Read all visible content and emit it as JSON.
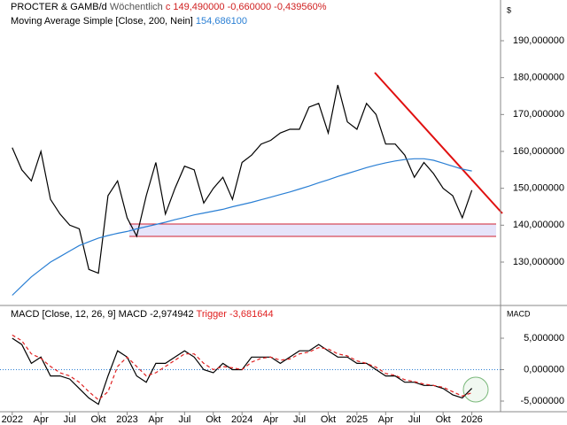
{
  "chart_data": [
    {
      "type": "line",
      "title": "PROCTER & GAMB/d",
      "subtitle": "Wöchentlich",
      "annotation": "c 149,490000 -0,660000 -0,439560%",
      "axis_label": "$",
      "x": [
        "2022-01",
        "2022-02",
        "2022-03",
        "2022-04",
        "2022-05",
        "2022-06",
        "2022-07",
        "2022-08",
        "2022-09",
        "2022-10",
        "2022-11",
        "2022-12",
        "2023-01",
        "2023-02",
        "2023-03",
        "2023-04",
        "2023-05",
        "2023-06",
        "2023-07",
        "2023-08",
        "2023-09",
        "2023-10",
        "2023-11",
        "2023-12",
        "2024-01",
        "2024-02",
        "2024-03",
        "2024-04",
        "2024-05",
        "2024-06",
        "2024-07",
        "2024-08",
        "2024-09",
        "2024-10",
        "2024-11",
        "2024-12",
        "2025-01",
        "2025-02",
        "2025-03",
        "2025-04",
        "2025-05",
        "2025-06",
        "2025-07",
        "2025-08",
        "2025-09",
        "2025-10",
        "2025-11",
        "2025-12",
        "2026-01"
      ],
      "series": [
        {
          "name": "PROCTER & GAMB/d",
          "color": "#000000",
          "values": [
            161,
            155,
            152,
            160,
            147,
            143,
            140,
            139,
            128,
            127,
            148,
            152,
            142,
            137,
            148,
            157,
            143,
            150,
            156,
            155,
            146,
            150,
            153,
            147,
            157,
            159,
            162,
            163,
            165,
            166,
            166,
            172,
            173,
            165,
            178,
            168,
            166,
            173,
            170,
            162,
            162,
            159,
            153,
            157,
            154,
            150,
            148,
            142,
            149.49
          ]
        },
        {
          "name": "Moving Average Simple [Close, 200, Nein]",
          "value_label": "154,686100",
          "color": "#2a7fd4",
          "values": [
            121,
            123.5,
            126,
            128,
            130,
            131.5,
            133,
            134.5,
            135.5,
            136.5,
            137.2,
            137.8,
            138.3,
            139,
            139.6,
            140.2,
            140.8,
            141.5,
            142.1,
            142.8,
            143.3,
            143.8,
            144.3,
            145,
            145.6,
            146.2,
            146.9,
            147.6,
            148.3,
            149,
            149.8,
            150.6,
            151.5,
            152.3,
            153.2,
            154,
            154.8,
            155.6,
            156.3,
            156.9,
            157.4,
            157.8,
            158,
            158,
            157.6,
            156.8,
            156,
            155.2,
            154.69
          ]
        }
      ],
      "ylim": [
        118.72,
        201.04
      ],
      "yticks": [
        {
          "value": 130,
          "label": "130,000000"
        },
        {
          "value": 140,
          "label": "140,000000"
        },
        {
          "value": 150,
          "label": "150,000000"
        },
        {
          "value": 160,
          "label": "160,000000"
        },
        {
          "value": 170,
          "label": "170,000000"
        },
        {
          "value": 180,
          "label": "180,000000"
        },
        {
          "value": 190,
          "label": "190,000000"
        }
      ],
      "xlim": [
        "2021-12",
        "2026-04"
      ]
    },
    {
      "type": "line",
      "title": "MACD [Close, 12, 26, 9]",
      "axis_label": "MACD",
      "x": [
        "2022-01",
        "2022-02",
        "2022-03",
        "2022-04",
        "2022-05",
        "2022-06",
        "2022-07",
        "2022-08",
        "2022-09",
        "2022-10",
        "2022-11",
        "2022-12",
        "2023-01",
        "2023-02",
        "2023-03",
        "2023-04",
        "2023-05",
        "2023-06",
        "2023-07",
        "2023-08",
        "2023-09",
        "2023-10",
        "2023-11",
        "2023-12",
        "2024-01",
        "2024-02",
        "2024-03",
        "2024-04",
        "2024-05",
        "2024-06",
        "2024-07",
        "2024-08",
        "2024-09",
        "2024-10",
        "2024-11",
        "2024-12",
        "2025-01",
        "2025-02",
        "2025-03",
        "2025-04",
        "2025-05",
        "2025-06",
        "2025-07",
        "2025-08",
        "2025-09",
        "2025-10",
        "2025-11",
        "2025-12",
        "2026-01"
      ],
      "series": [
        {
          "name": "MACD",
          "value_label": "-2,974942",
          "color": "#000000",
          "values": [
            5,
            4,
            1,
            2,
            -1,
            -1,
            -1.5,
            -3,
            -4.5,
            -5.5,
            -1,
            3,
            2,
            -1,
            -2,
            1,
            1,
            2,
            3,
            2,
            0,
            -0.5,
            1,
            0,
            0,
            2,
            2,
            2,
            1,
            2,
            3,
            3,
            4,
            3,
            2,
            2,
            1,
            1,
            0,
            -1,
            -1,
            -2,
            -2,
            -2.5,
            -2.5,
            -3,
            -4,
            -4.5,
            -2.974942
          ]
        },
        {
          "name": "Trigger",
          "value_label": "-3,681644",
          "color": "#e02020",
          "values": [
            5.5,
            4.6,
            2.5,
            1.8,
            0.5,
            -0.5,
            -1,
            -2,
            -3.5,
            -4.8,
            -3.5,
            0.5,
            2,
            0.5,
            -1,
            -0.5,
            0.5,
            1.5,
            2.5,
            2.5,
            1,
            0,
            0.5,
            0.3,
            0,
            1.2,
            1.8,
            2,
            1.5,
            1.7,
            2.5,
            2.8,
            3.5,
            3.3,
            2.5,
            2.2,
            1.4,
            1,
            0.4,
            -0.6,
            -0.9,
            -1.6,
            -1.9,
            -2.3,
            -2.5,
            -2.8,
            -3.5,
            -4.2,
            -3.681644
          ]
        }
      ],
      "ylim": [
        -6.69,
        10.07
      ],
      "yticks": [
        {
          "value": -5,
          "label": "-5,000000"
        },
        {
          "value": 0,
          "label": "0,000000"
        },
        {
          "value": 5,
          "label": "5,000000"
        }
      ],
      "xlim": [
        "2021-12",
        "2026-04"
      ],
      "xticks": [
        {
          "value": "2022-01",
          "label": "2022"
        },
        {
          "value": "2022-04",
          "label": "Apr"
        },
        {
          "value": "2022-07",
          "label": "Jul"
        },
        {
          "value": "2022-10",
          "label": "Okt"
        },
        {
          "value": "2023-01",
          "label": "2023"
        },
        {
          "value": "2023-04",
          "label": "Apr"
        },
        {
          "value": "2023-07",
          "label": "Jul"
        },
        {
          "value": "2023-10",
          "label": "Okt"
        },
        {
          "value": "2024-01",
          "label": "2024"
        },
        {
          "value": "2024-04",
          "label": "Apr"
        },
        {
          "value": "2024-07",
          "label": "Jul"
        },
        {
          "value": "2024-10",
          "label": "Okt"
        },
        {
          "value": "2025-01",
          "label": "2025"
        },
        {
          "value": "2025-04",
          "label": "Apr"
        },
        {
          "value": "2025-07",
          "label": "Jul"
        },
        {
          "value": "2025-10",
          "label": "Okt"
        },
        {
          "value": "2026-01",
          "label": "2026"
        }
      ]
    }
  ]
}
